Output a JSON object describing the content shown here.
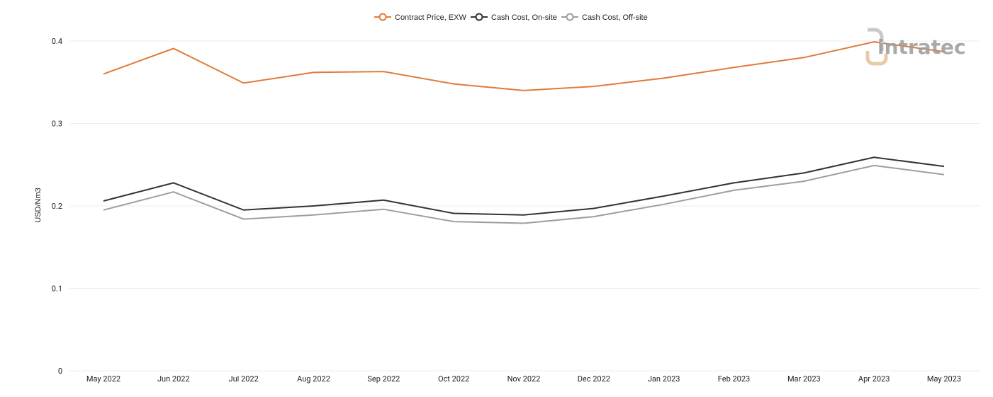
{
  "chart_data": {
    "type": "line",
    "categories": [
      "May 2022",
      "Jun 2022",
      "Jul 2022",
      "Aug 2022",
      "Sep 2022",
      "Oct 2022",
      "Nov 2022",
      "Dec 2022",
      "Jan 2023",
      "Feb 2023",
      "Mar 2023",
      "Apr 2023",
      "May 2023"
    ],
    "series": [
      {
        "name": "Contract Price, EXW",
        "color": "#e07b39",
        "values": [
          0.36,
          0.391,
          0.349,
          0.362,
          0.363,
          0.348,
          0.34,
          0.345,
          0.355,
          0.368,
          0.38,
          0.399,
          0.387
        ]
      },
      {
        "name": "Cash Cost, On-site",
        "color": "#333333",
        "values": [
          0.206,
          0.228,
          0.195,
          0.2,
          0.207,
          0.191,
          0.189,
          0.197,
          0.212,
          0.228,
          0.24,
          0.259,
          0.248
        ]
      },
      {
        "name": "Cash Cost, Off-site",
        "color": "#9e9e9e",
        "values": [
          0.195,
          0.217,
          0.184,
          0.189,
          0.196,
          0.181,
          0.179,
          0.187,
          0.202,
          0.219,
          0.23,
          0.249,
          0.238
        ]
      }
    ],
    "ylabel": "USD/Nm3",
    "xlabel": "",
    "ylim": [
      0,
      0.4
    ],
    "yticks": [
      0,
      0.1,
      0.2,
      0.3,
      0.4
    ],
    "grid": true,
    "legend_position": "top-center"
  },
  "logo": {
    "text": "intratec",
    "icon": "intratec-logo-icon"
  }
}
